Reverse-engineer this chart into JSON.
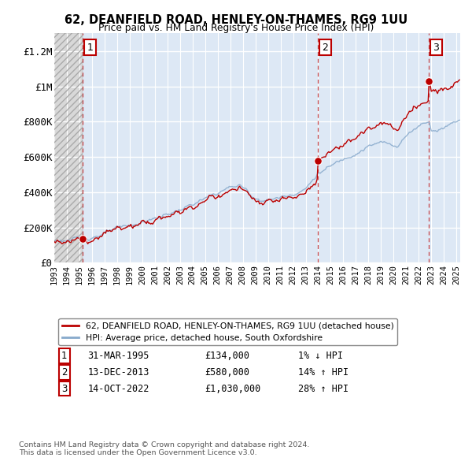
{
  "title": "62, DEANFIELD ROAD, HENLEY-ON-THAMES, RG9 1UU",
  "subtitle": "Price paid vs. HM Land Registry's House Price Index (HPI)",
  "ylim": [
    0,
    1300000
  ],
  "xlim_start": 1993.0,
  "xlim_end": 2025.3,
  "ytick_vals": [
    0,
    200000,
    400000,
    600000,
    800000,
    1000000,
    1200000
  ],
  "ytick_labels": [
    "£0",
    "£200K",
    "£400K",
    "£600K",
    "£800K",
    "£1M",
    "£1.2M"
  ],
  "xtick_vals": [
    1993,
    1994,
    1995,
    1996,
    1997,
    1998,
    1999,
    2000,
    2001,
    2002,
    2003,
    2004,
    2005,
    2006,
    2007,
    2008,
    2009,
    2010,
    2011,
    2012,
    2013,
    2014,
    2015,
    2016,
    2017,
    2018,
    2019,
    2020,
    2021,
    2022,
    2023,
    2024,
    2025
  ],
  "sale1_date": 1995.25,
  "sale1_price": 134000,
  "sale2_date": 2013.96,
  "sale2_price": 580000,
  "sale3_date": 2022.79,
  "sale3_price": 1030000,
  "red": "#bb0000",
  "blue": "#88aacc",
  "plot_bg": "#dde8f5",
  "hatch_bg": "#d8d8d8",
  "grid_col": "#ffffff",
  "legend_red": "62, DEANFIELD ROAD, HENLEY-ON-THAMES, RG9 1UU (detached house)",
  "legend_blue": "HPI: Average price, detached house, South Oxfordshire",
  "sale1_label": "1",
  "sale1_info": "31-MAR-1995",
  "sale1_amount": "£134,000",
  "sale1_hpi": "1% ↓ HPI",
  "sale2_label": "2",
  "sale2_info": "13-DEC-2013",
  "sale2_amount": "£580,000",
  "sale2_hpi": "14% ↑ HPI",
  "sale3_label": "3",
  "sale3_info": "14-OCT-2022",
  "sale3_amount": "£1,030,000",
  "sale3_hpi": "28% ↑ HPI",
  "footnote": "Contains HM Land Registry data © Crown copyright and database right 2024.\nThis data is licensed under the Open Government Licence v3.0."
}
